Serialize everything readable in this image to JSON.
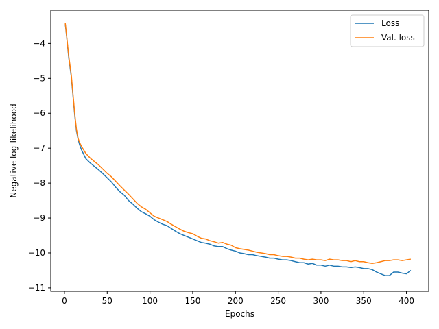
{
  "colors": {
    "loss": "#1f77b4",
    "val_loss": "#ff7f0e",
    "axis": "#000000",
    "legend_border": "#cccccc"
  },
  "chart_data": {
    "type": "line",
    "title": "",
    "xlabel": "Epochs",
    "ylabel": "Negative log-likelihood",
    "xlim": [
      -16,
      426
    ],
    "ylim": [
      -11.1,
      -3.05
    ],
    "xticks": [
      0,
      50,
      100,
      150,
      200,
      250,
      300,
      350,
      400
    ],
    "yticks": [
      -11,
      -10,
      -9,
      -8,
      -7,
      -6,
      -5,
      -4
    ],
    "grid": false,
    "legend_position": "top-right",
    "series": [
      {
        "name": "Loss",
        "color": "#1f77b4",
        "x": [
          1,
          3,
          5,
          8,
          10,
          12,
          14,
          16,
          18,
          20,
          25,
          30,
          35,
          40,
          45,
          50,
          55,
          60,
          65,
          70,
          75,
          80,
          85,
          90,
          95,
          100,
          105,
          110,
          115,
          120,
          125,
          130,
          135,
          140,
          145,
          150,
          155,
          160,
          165,
          170,
          175,
          180,
          185,
          190,
          195,
          200,
          205,
          210,
          215,
          220,
          225,
          230,
          235,
          240,
          245,
          250,
          255,
          260,
          265,
          270,
          275,
          280,
          285,
          290,
          295,
          300,
          305,
          310,
          315,
          320,
          325,
          330,
          335,
          340,
          345,
          350,
          355,
          360,
          365,
          370,
          375,
          380,
          385,
          390,
          395,
          400,
          405
        ],
        "y": [
          -3.45,
          -3.9,
          -4.4,
          -4.95,
          -5.5,
          -6.05,
          -6.5,
          -6.75,
          -6.92,
          -7.05,
          -7.3,
          -7.42,
          -7.52,
          -7.62,
          -7.73,
          -7.85,
          -7.97,
          -8.12,
          -8.25,
          -8.35,
          -8.5,
          -8.6,
          -8.72,
          -8.82,
          -8.88,
          -8.95,
          -9.05,
          -9.12,
          -9.18,
          -9.22,
          -9.3,
          -9.38,
          -9.45,
          -9.5,
          -9.55,
          -9.6,
          -9.65,
          -9.7,
          -9.72,
          -9.75,
          -9.8,
          -9.82,
          -9.82,
          -9.88,
          -9.92,
          -9.95,
          -10.0,
          -10.02,
          -10.05,
          -10.05,
          -10.08,
          -10.1,
          -10.12,
          -10.15,
          -10.15,
          -10.18,
          -10.2,
          -10.2,
          -10.22,
          -10.25,
          -10.28,
          -10.28,
          -10.32,
          -10.3,
          -10.35,
          -10.35,
          -10.38,
          -10.35,
          -10.38,
          -10.38,
          -10.4,
          -10.4,
          -10.42,
          -10.4,
          -10.42,
          -10.45,
          -10.45,
          -10.48,
          -10.55,
          -10.6,
          -10.65,
          -10.65,
          -10.55,
          -10.55,
          -10.58,
          -10.6,
          -10.5
        ]
      },
      {
        "name": "Val. loss",
        "color": "#ff7f0e",
        "x": [
          1,
          3,
          5,
          8,
          10,
          12,
          14,
          16,
          18,
          20,
          25,
          30,
          35,
          40,
          45,
          50,
          55,
          60,
          65,
          70,
          75,
          80,
          85,
          90,
          95,
          100,
          105,
          110,
          115,
          120,
          125,
          130,
          135,
          140,
          145,
          150,
          155,
          160,
          165,
          170,
          175,
          180,
          185,
          190,
          195,
          200,
          205,
          210,
          215,
          220,
          225,
          230,
          235,
          240,
          245,
          250,
          255,
          260,
          265,
          270,
          275,
          280,
          285,
          290,
          295,
          300,
          305,
          310,
          315,
          320,
          325,
          330,
          335,
          340,
          345,
          350,
          355,
          360,
          365,
          370,
          375,
          380,
          385,
          390,
          395,
          400,
          405
        ],
        "y": [
          -3.42,
          -3.88,
          -4.35,
          -4.9,
          -5.45,
          -6.0,
          -6.45,
          -6.72,
          -6.85,
          -6.95,
          -7.15,
          -7.28,
          -7.38,
          -7.48,
          -7.6,
          -7.72,
          -7.82,
          -7.95,
          -8.08,
          -8.2,
          -8.32,
          -8.45,
          -8.58,
          -8.68,
          -8.75,
          -8.85,
          -8.95,
          -9.0,
          -9.05,
          -9.1,
          -9.18,
          -9.25,
          -9.32,
          -9.38,
          -9.42,
          -9.45,
          -9.52,
          -9.58,
          -9.6,
          -9.65,
          -9.68,
          -9.72,
          -9.7,
          -9.75,
          -9.78,
          -9.85,
          -9.88,
          -9.9,
          -9.92,
          -9.95,
          -9.98,
          -10.0,
          -10.02,
          -10.05,
          -10.05,
          -10.08,
          -10.1,
          -10.1,
          -10.12,
          -10.15,
          -10.15,
          -10.18,
          -10.2,
          -10.18,
          -10.2,
          -10.2,
          -10.22,
          -10.18,
          -10.2,
          -10.2,
          -10.22,
          -10.22,
          -10.25,
          -10.22,
          -10.25,
          -10.25,
          -10.28,
          -10.3,
          -10.28,
          -10.25,
          -10.22,
          -10.22,
          -10.2,
          -10.2,
          -10.22,
          -10.2,
          -10.18
        ]
      }
    ]
  }
}
